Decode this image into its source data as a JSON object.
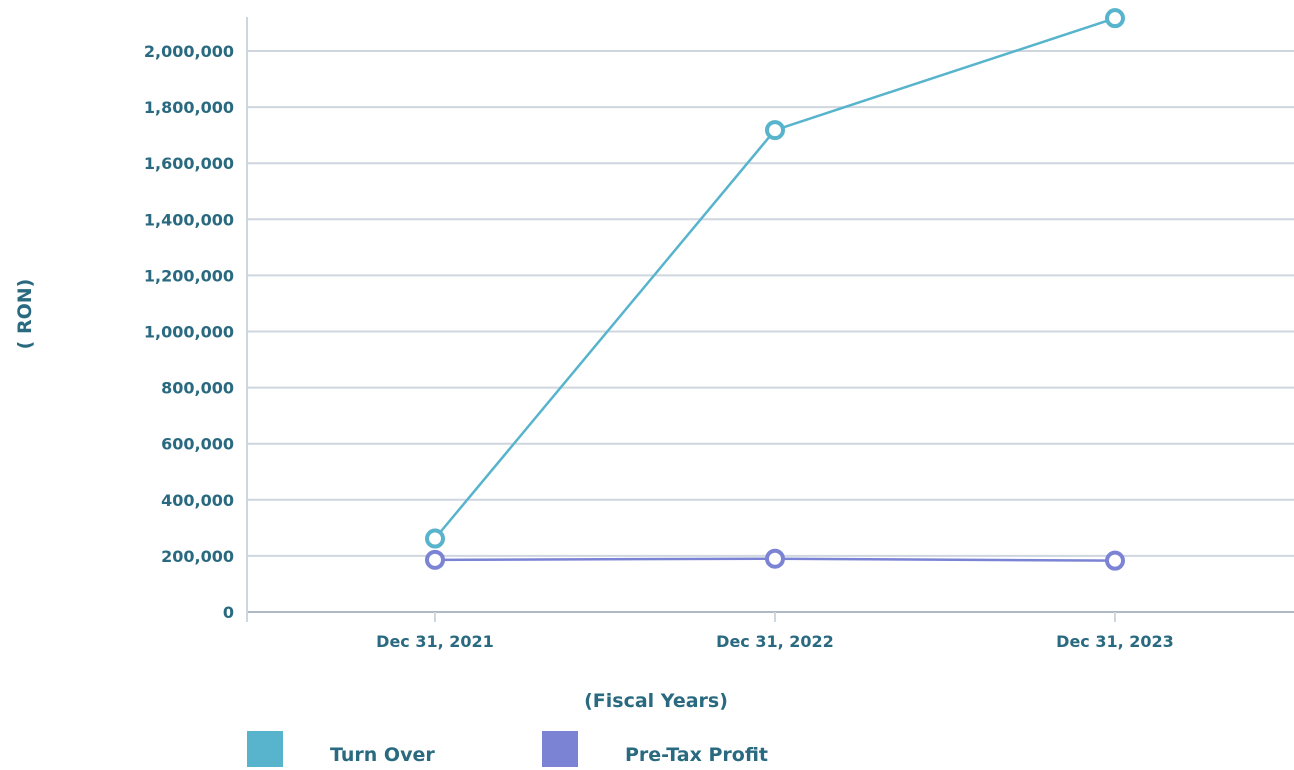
{
  "chart_data": {
    "type": "line",
    "title": "",
    "xlabel": "(Fiscal Years)",
    "ylabel": "( RON)",
    "categories": [
      "Dec 31, 2021",
      "Dec 31, 2022",
      "Dec 31, 2023"
    ],
    "series": [
      {
        "name": "Turn Over",
        "color": "#57b4cc",
        "values": [
          262000,
          1718000,
          2117000
        ]
      },
      {
        "name": "Pre-Tax Profit",
        "color": "#7b84d4",
        "values": [
          186000,
          190000,
          183000
        ]
      }
    ],
    "ylim": [
      0,
      2100000
    ],
    "y_ticks": [
      0,
      200000,
      400000,
      600000,
      800000,
      1000000,
      1200000,
      1400000,
      1600000,
      1800000,
      2000000
    ],
    "y_tick_labels": [
      "0",
      "200,000",
      "400,000",
      "600,000",
      "800,000",
      "1,000,000",
      "1,200,000",
      "1,400,000",
      "1,600,000",
      "1,800,000",
      "2,000,000"
    ],
    "grid": true,
    "legend_position": "bottom-left",
    "colors": {
      "text": "#2a6a80",
      "grid": "#cfd6df",
      "axis": "#aeb9c4"
    }
  }
}
